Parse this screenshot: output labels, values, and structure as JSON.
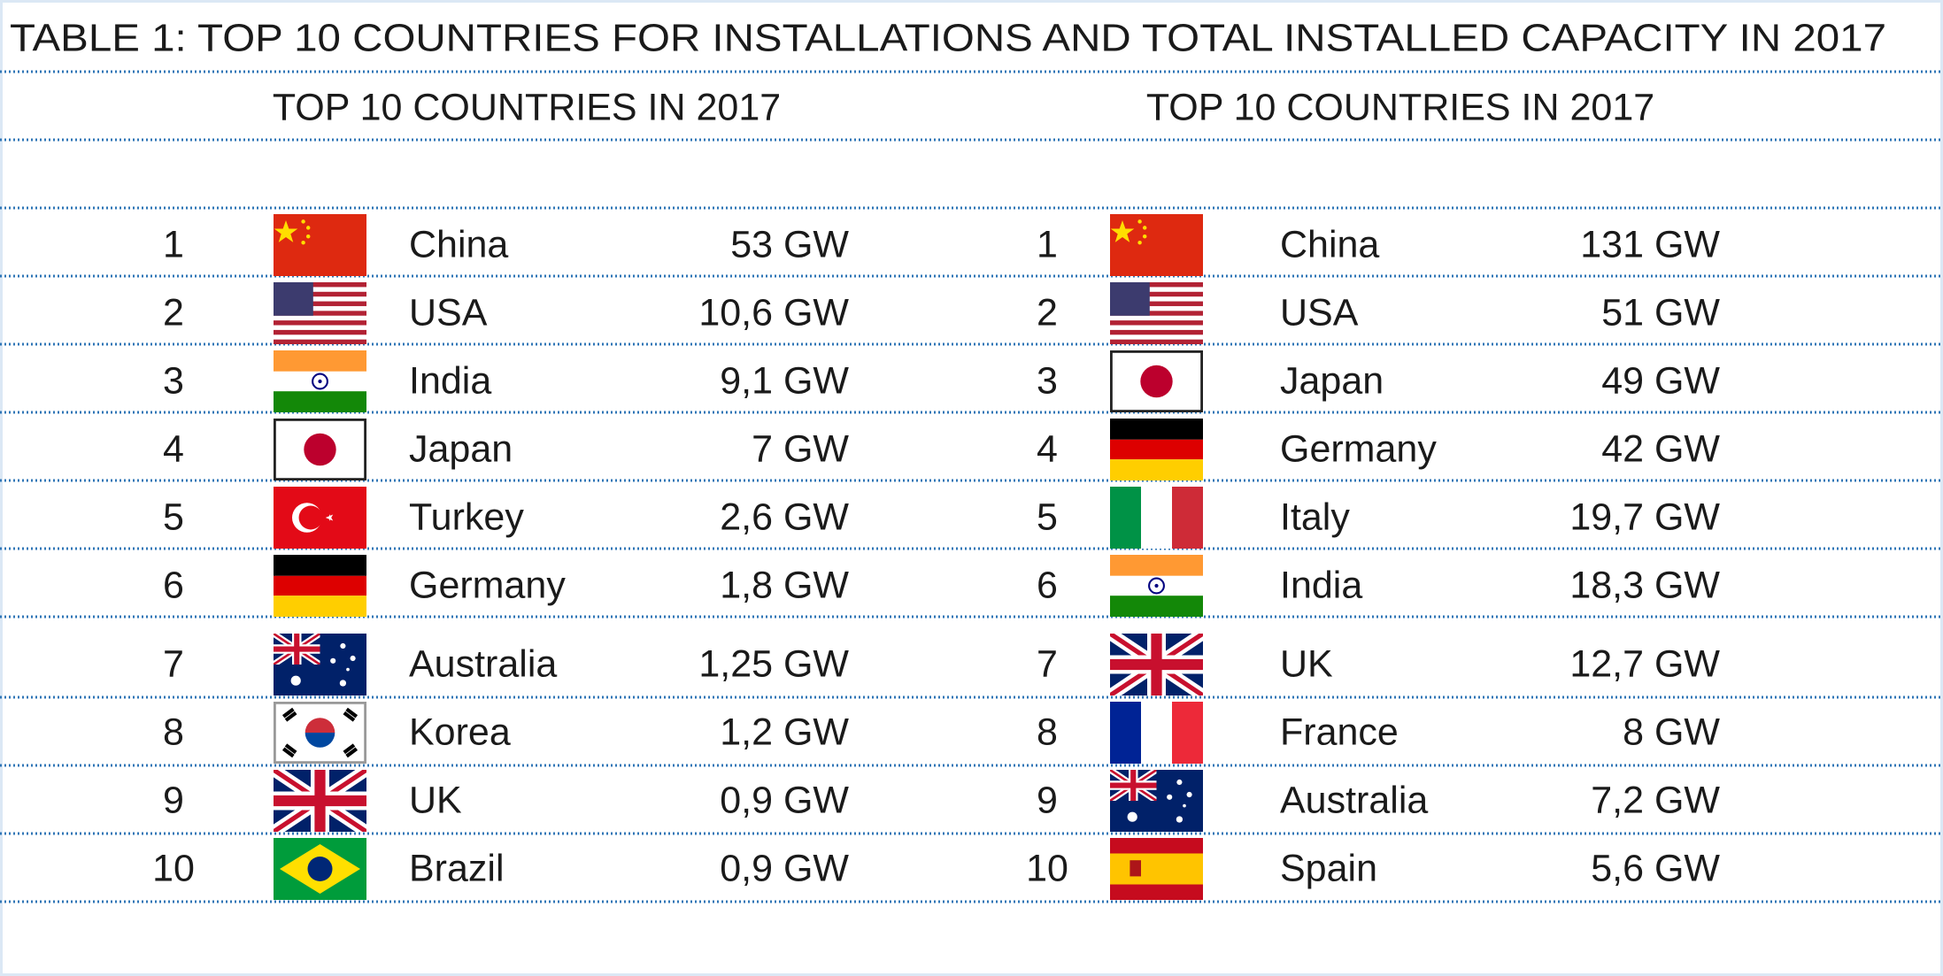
{
  "title": "TABLE 1: TOP 10 COUNTRIES FOR INSTALLATIONS AND TOTAL INSTALLED CAPACITY IN 2017",
  "tables": [
    {
      "subtitle": "TOP 10 COUNTRIES IN 2017",
      "rows": [
        {
          "rank": 1,
          "country": "China",
          "value": "53 GW"
        },
        {
          "rank": 2,
          "country": "USA",
          "value": "10,6 GW"
        },
        {
          "rank": 3,
          "country": "India",
          "value": "9,1 GW"
        },
        {
          "rank": 4,
          "country": "Japan",
          "value": "7 GW"
        },
        {
          "rank": 5,
          "country": "Turkey",
          "value": "2,6 GW"
        },
        {
          "rank": 6,
          "country": "Germany",
          "value": "1,8 GW"
        },
        {
          "rank": 7,
          "country": "Australia",
          "value": "1,25 GW"
        },
        {
          "rank": 8,
          "country": "Korea",
          "value": "1,2 GW"
        },
        {
          "rank": 9,
          "country": "UK",
          "value": "0,9 GW"
        },
        {
          "rank": 10,
          "country": "Brazil",
          "value": "0,9 GW"
        }
      ]
    },
    {
      "subtitle": "TOP 10 COUNTRIES IN 2017",
      "rows": [
        {
          "rank": 1,
          "country": "China",
          "value": "131 GW"
        },
        {
          "rank": 2,
          "country": "USA",
          "value": "51 GW"
        },
        {
          "rank": 3,
          "country": "Japan",
          "value": "49 GW"
        },
        {
          "rank": 4,
          "country": "Germany",
          "value": "42 GW"
        },
        {
          "rank": 5,
          "country": "Italy",
          "value": "19,7 GW"
        },
        {
          "rank": 6,
          "country": "India",
          "value": "18,3 GW"
        },
        {
          "rank": 7,
          "country": "UK",
          "value": "12,7 GW"
        },
        {
          "rank": 8,
          "country": "France",
          "value": "8 GW"
        },
        {
          "rank": 9,
          "country": "Australia",
          "value": "7,2 GW"
        },
        {
          "rank": 10,
          "country": "Spain",
          "value": "5,6 GW"
        }
      ]
    }
  ]
}
